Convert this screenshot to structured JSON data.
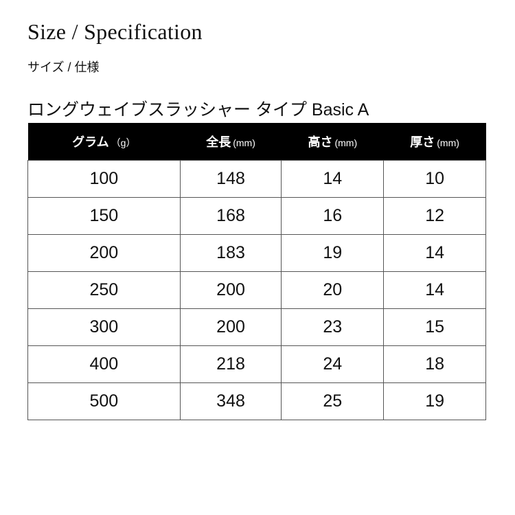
{
  "title": "Size / Specification",
  "subtitle": "サイズ / 仕様",
  "product": "ロングウェイブスラッシャー タイプ Basic A",
  "table": {
    "headers": [
      {
        "label": "グラム",
        "unit": "（g）"
      },
      {
        "label": "全長",
        "unit": "(mm)"
      },
      {
        "label": "高さ",
        "unit": "(mm)"
      },
      {
        "label": "厚さ",
        "unit": "(mm)"
      }
    ],
    "rows": [
      [
        "100",
        "148",
        "14",
        "10"
      ],
      [
        "150",
        "168",
        "16",
        "12"
      ],
      [
        "200",
        "183",
        "19",
        "14"
      ],
      [
        "250",
        "200",
        "20",
        "14"
      ],
      [
        "300",
        "200",
        "23",
        "15"
      ],
      [
        "400",
        "218",
        "24",
        "18"
      ],
      [
        "500",
        "348",
        "25",
        "19"
      ]
    ]
  }
}
